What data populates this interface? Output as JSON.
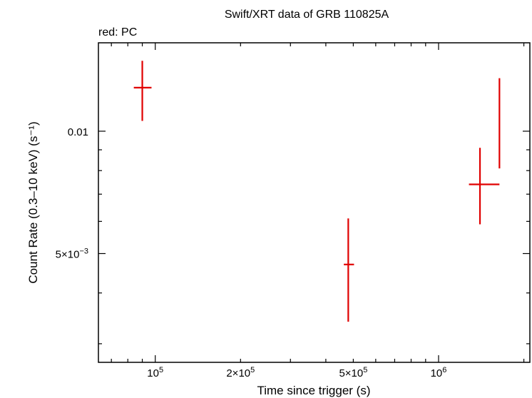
{
  "chart_data": {
    "type": "scatter",
    "title": "Swift/XRT data of GRB 110825A",
    "subtitle": "red: PC",
    "xlabel": "Time since trigger (s)",
    "ylabel": "Count Rate (0.3–10 keV) (s⁻¹)",
    "x_scale": "log",
    "y_scale": "log",
    "xlim": [
      63000,
      2100000
    ],
    "ylim": [
      0.0027,
      0.0165
    ],
    "grid": false,
    "x_ticks": [
      {
        "value": 100000,
        "mantissa": "10",
        "sup": "5"
      },
      {
        "value": 200000,
        "mantissa": "2×10",
        "sup": "5"
      },
      {
        "value": 500000,
        "mantissa": "5×10",
        "sup": "5"
      },
      {
        "value": 1000000,
        "mantissa": "10",
        "sup": "6"
      }
    ],
    "y_ticks": [
      {
        "value": 0.005,
        "mantissa": "5×10",
        "sup": "−3"
      },
      {
        "value": 0.01,
        "mantissa": "0.01",
        "sup": ""
      }
    ],
    "series": [
      {
        "color": "#e00000",
        "points": [
          {
            "x": 90000,
            "xerr": [
              84000,
              97000
            ],
            "y": 0.0128,
            "yerr": [
              0.0106,
              0.0149
            ]
          },
          {
            "x": 480000,
            "xerr": [
              463000,
              503000
            ],
            "y": 0.0047,
            "yerr": [
              0.0034,
              0.0061
            ]
          },
          {
            "x": 1400000,
            "xerr": [
              1280000,
              1640000
            ],
            "y": 0.0074,
            "yerr": [
              0.0059,
              0.0091
            ]
          },
          {
            "x": 1640000,
            "xerr": [
              1640000,
              1640000
            ],
            "y": 0.0102,
            "yerr": [
              0.0081,
              0.0135
            ]
          }
        ]
      }
    ]
  }
}
